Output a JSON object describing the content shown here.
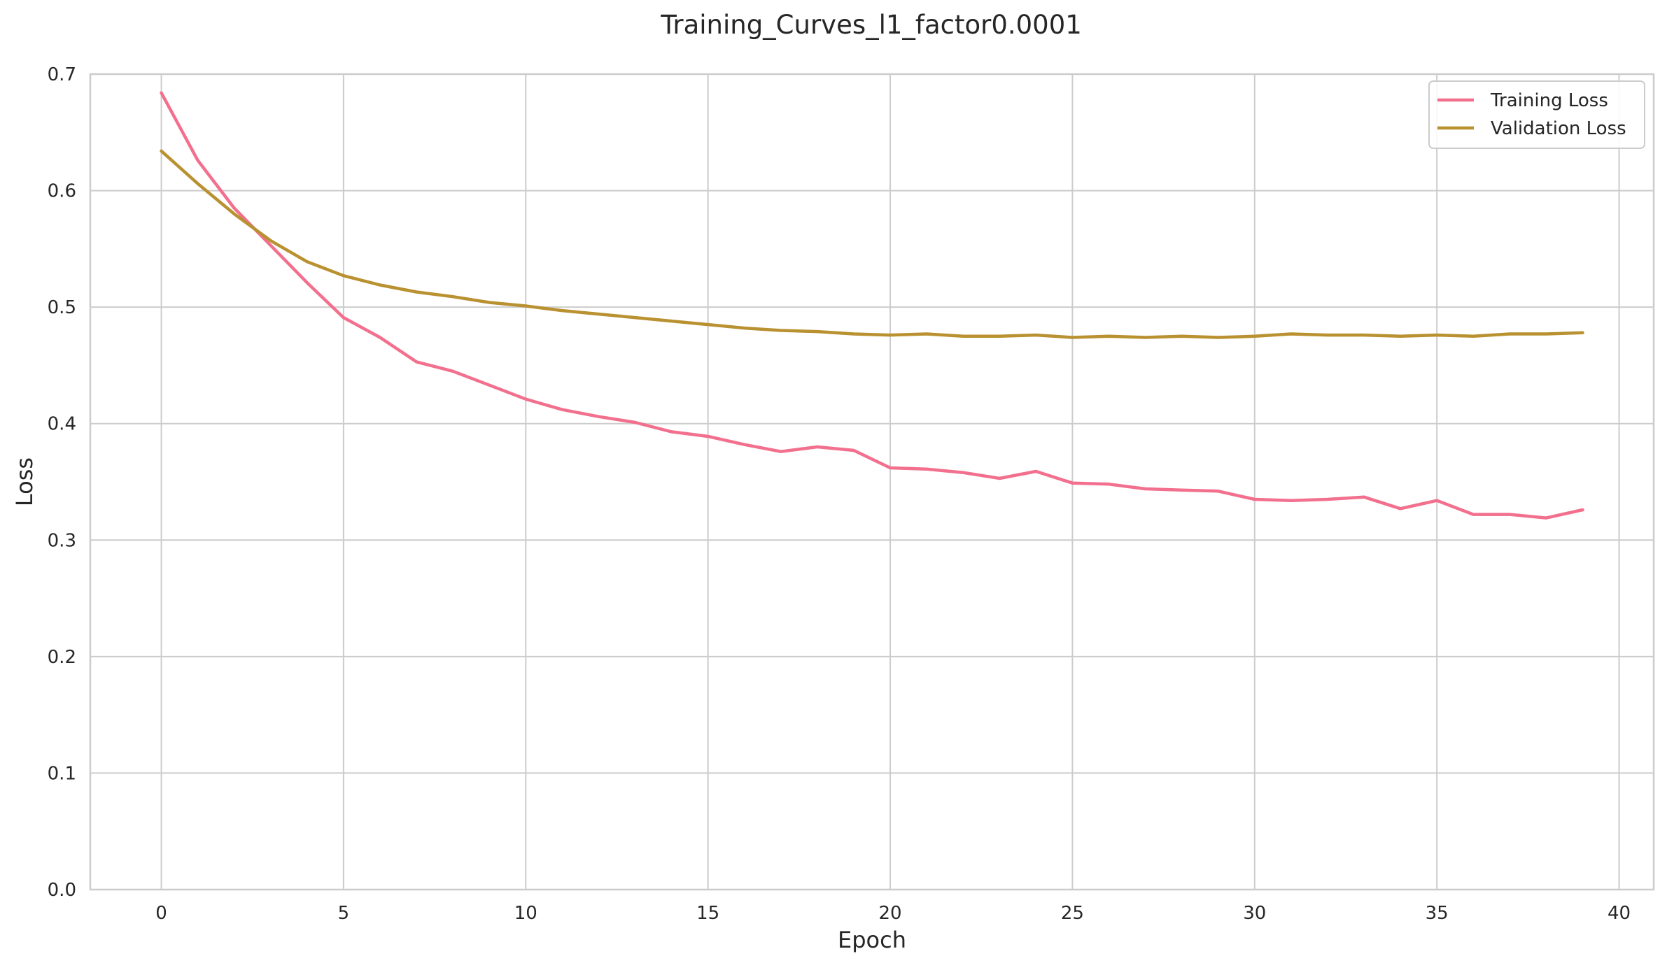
{
  "chart_data": {
    "type": "line",
    "title": "Training_Curves_l1_factor0.0001",
    "xlabel": "Epoch",
    "ylabel": "Loss",
    "xlim": [
      -1.95,
      40.95
    ],
    "ylim": [
      0,
      0.7
    ],
    "xticks": [
      0,
      5,
      10,
      15,
      20,
      25,
      30,
      35,
      40
    ],
    "yticks": [
      0.0,
      0.1,
      0.2,
      0.3,
      0.4,
      0.5,
      0.6,
      0.7
    ],
    "xtick_labels": [
      "0",
      "5",
      "10",
      "15",
      "20",
      "25",
      "30",
      "35",
      "40"
    ],
    "ytick_labels": [
      "0.0",
      "0.1",
      "0.2",
      "0.3",
      "0.4",
      "0.5",
      "0.6",
      "0.7"
    ],
    "grid": true,
    "legend_position": "top-right",
    "x": [
      0,
      1,
      2,
      3,
      4,
      5,
      6,
      7,
      8,
      9,
      10,
      11,
      12,
      13,
      14,
      15,
      16,
      17,
      18,
      19,
      20,
      21,
      22,
      23,
      24,
      25,
      26,
      27,
      28,
      29,
      30,
      31,
      32,
      33,
      34,
      35,
      36,
      37,
      38,
      39
    ],
    "series": [
      {
        "name": "Training Loss",
        "color": "#f2708e",
        "values": [
          0.684,
          0.626,
          0.585,
          0.553,
          0.521,
          0.491,
          0.474,
          0.453,
          0.445,
          0.433,
          0.421,
          0.412,
          0.406,
          0.401,
          0.393,
          0.389,
          0.382,
          0.376,
          0.38,
          0.377,
          0.362,
          0.361,
          0.358,
          0.353,
          0.359,
          0.349,
          0.348,
          0.344,
          0.343,
          0.342,
          0.335,
          0.334,
          0.335,
          0.337,
          0.327,
          0.334,
          0.322,
          0.322,
          0.319,
          0.326
        ]
      },
      {
        "name": "Validation Loss",
        "color": "#b99130",
        "values": [
          0.634,
          0.606,
          0.58,
          0.557,
          0.539,
          0.527,
          0.519,
          0.513,
          0.509,
          0.504,
          0.501,
          0.497,
          0.494,
          0.491,
          0.488,
          0.485,
          0.482,
          0.48,
          0.479,
          0.477,
          0.476,
          0.477,
          0.475,
          0.475,
          0.476,
          0.474,
          0.475,
          0.474,
          0.475,
          0.474,
          0.475,
          0.477,
          0.476,
          0.476,
          0.475,
          0.476,
          0.475,
          0.477,
          0.477,
          0.478
        ]
      }
    ]
  }
}
